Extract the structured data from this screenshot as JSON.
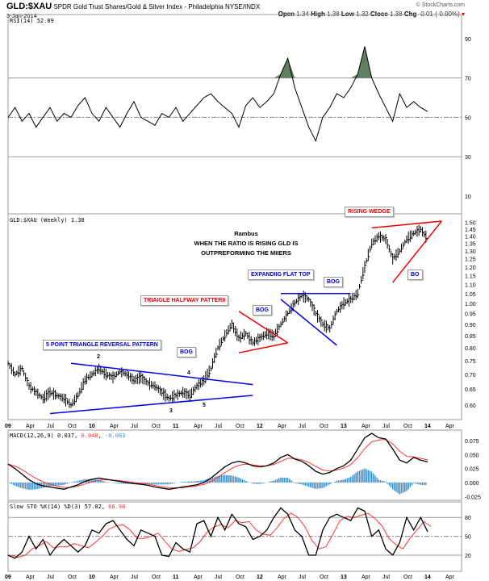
{
  "header": {
    "symbol": "GLD:$XAU",
    "description": "SPDR Gold Trust Shares/Gold & Silver Index - Philadelphia",
    "exchange": "NYSE/INDX",
    "date": "3-Jan-2014",
    "credit": "© StockCharts.com",
    "open_label": "Open",
    "open": "1.34",
    "high_label": "High",
    "high": "1.38",
    "low_label": "Low",
    "low": "1.32",
    "close_label": "Close",
    "close": "1.38",
    "chg_label": "Chg",
    "chg": "-0.01 (-0.90%)"
  },
  "colors": {
    "rsi_fill": "#5f7f5f",
    "trend_blue": "#0000ee",
    "trend_red": "#ee0000",
    "signal": "#ff3333",
    "histogram": "#3d8fcc"
  },
  "annotations": {
    "author": "Rambus",
    "comment_1": "WHEN THE RATIO IS RISING GLD IS",
    "comment_2": "OUTPREFORMING THE MIIERS",
    "rising_wedge": "RISING WEDGE",
    "bo": "BO",
    "expanding_flat_top": "EXPANDIIG FLAT TOP",
    "bog1": "BOG",
    "bog2": "BOG",
    "bog3": "BOG",
    "triangle_halfway": "TRIAIGLE HALFWAY PATTERII",
    "five_point": "5 POINT TRIANGLE REVERSAL PATTERN",
    "p2": "2",
    "p3": "3",
    "p4": "4",
    "p5": "5"
  },
  "chart_data": [
    {
      "type": "line",
      "title": "RSI(14) 52.89",
      "yticks": [
        90,
        70,
        50,
        30,
        10
      ],
      "ylim": [
        0,
        100
      ],
      "overbought": 70,
      "oversold": 30,
      "x_start": "2009-01",
      "x_step": "month",
      "values": [
        50,
        55,
        48,
        52,
        45,
        50,
        55,
        48,
        52,
        50,
        56,
        60,
        52,
        48,
        55,
        50,
        45,
        52,
        58,
        50,
        48,
        46,
        52,
        50,
        55,
        48,
        52,
        56,
        60,
        62,
        58,
        55,
        52,
        45,
        56,
        60,
        55,
        58,
        62,
        72,
        80,
        65,
        55,
        45,
        38,
        50,
        55,
        62,
        60,
        65,
        72,
        86,
        70,
        62,
        55,
        48,
        62,
        55,
        58,
        55,
        52.89
      ]
    },
    {
      "type": "bar",
      "title": "GLD:$XAU (Weekly) 1.38",
      "scale": "log",
      "ylim": [
        0.56,
        1.55
      ],
      "yticks": [
        "1.50",
        "1.45",
        "1.40",
        "1.35",
        "1.30",
        "1.25",
        "1.20",
        "1.15",
        "1.10",
        "1.05",
        "1.00",
        "0.95",
        "0.90",
        "0.85",
        "0.80",
        "0.75",
        "0.70",
        "0.65",
        "0.60"
      ],
      "x_start": "2009-01",
      "x_step": "month",
      "values": [
        0.74,
        0.7,
        0.72,
        0.66,
        0.64,
        0.62,
        0.64,
        0.63,
        0.62,
        0.6,
        0.63,
        0.68,
        0.7,
        0.72,
        0.7,
        0.69,
        0.71,
        0.7,
        0.68,
        0.69,
        0.67,
        0.66,
        0.64,
        0.62,
        0.63,
        0.64,
        0.63,
        0.66,
        0.68,
        0.72,
        0.8,
        0.85,
        0.9,
        0.84,
        0.86,
        0.82,
        0.84,
        0.86,
        0.85,
        0.9,
        0.95,
        1.0,
        1.04,
        1.02,
        0.95,
        0.9,
        0.88,
        0.96,
        1.0,
        1.02,
        1.05,
        1.2,
        1.35,
        1.4,
        1.38,
        1.25,
        1.3,
        1.38,
        1.42,
        1.45,
        1.38
      ]
    },
    {
      "type": "line",
      "title": "MACD(12,26,9)",
      "macd": "0.037",
      "signal": "0.040",
      "hist": "-0.003",
      "yticks": [
        "0.075",
        "0.050",
        "0.025",
        "0.000",
        "-0.025"
      ],
      "ylim": [
        -0.03,
        0.095
      ],
      "x_start": "2009-01",
      "x_step": "month",
      "values": [
        0.033,
        0.025,
        0.015,
        0.005,
        -0.002,
        -0.006,
        -0.008,
        -0.01,
        -0.012,
        -0.008,
        -0.004,
        0.002,
        0.006,
        0.008,
        0.006,
        0.004,
        0.002,
        0.0,
        -0.002,
        -0.003,
        -0.005,
        -0.008,
        -0.01,
        -0.012,
        -0.01,
        -0.008,
        -0.006,
        -0.004,
        0.0,
        0.008,
        0.018,
        0.028,
        0.035,
        0.038,
        0.035,
        0.03,
        0.028,
        0.03,
        0.035,
        0.045,
        0.05,
        0.042,
        0.038,
        0.03,
        0.02,
        0.015,
        0.018,
        0.025,
        0.03,
        0.04,
        0.06,
        0.08,
        0.088,
        0.08,
        0.078,
        0.06,
        0.04,
        0.035,
        0.045,
        0.04,
        0.037
      ]
    },
    {
      "type": "line",
      "title": "Slow STO %K(14) %D(3)",
      "k": "57.02",
      "d": "68.98",
      "yticks": [
        "80",
        "50",
        "20"
      ],
      "ylim": [
        0,
        100
      ],
      "x_start": "2009-01",
      "x_step": "month",
      "values": [
        20,
        15,
        25,
        50,
        30,
        45,
        20,
        35,
        45,
        35,
        25,
        35,
        60,
        55,
        70,
        75,
        60,
        45,
        35,
        60,
        55,
        50,
        20,
        18,
        40,
        30,
        25,
        70,
        75,
        50,
        80,
        60,
        85,
        70,
        65,
        45,
        50,
        60,
        80,
        95,
        85,
        60,
        50,
        20,
        20,
        60,
        80,
        85,
        80,
        75,
        95,
        90,
        50,
        60,
        30,
        20,
        40,
        80,
        60,
        80,
        57
      ]
    }
  ],
  "xaxis": {
    "labels": [
      "09",
      "Apr",
      "Jul",
      "Oct",
      "10",
      "Apr",
      "Jul",
      "Oct",
      "11",
      "Apr",
      "Jul",
      "Oct",
      "12",
      "Apr",
      "Jul",
      "Oct",
      "13",
      "Apr",
      "Jul",
      "Oct",
      "14",
      "Apr"
    ]
  }
}
